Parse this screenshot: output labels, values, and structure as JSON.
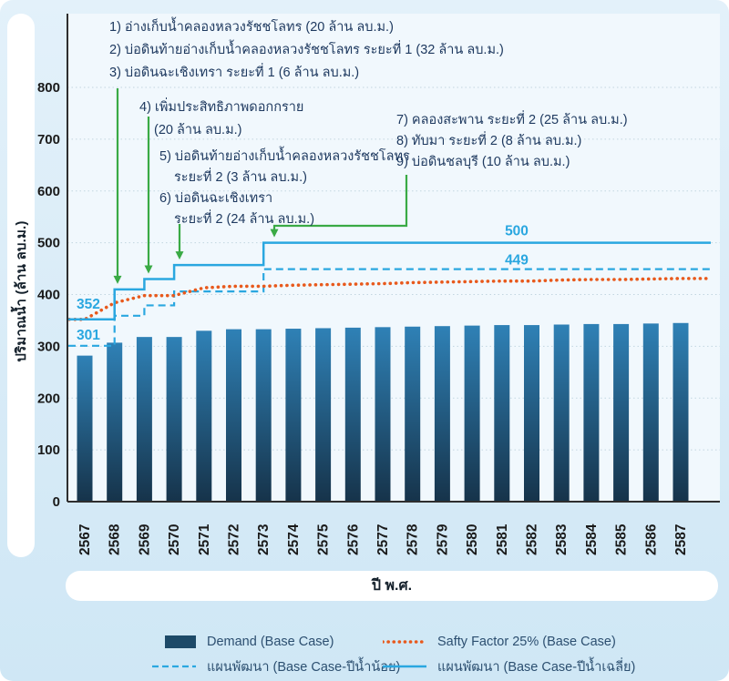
{
  "y_axis": {
    "label": "ปริมาณน้ำ (ล้าน ลบ.ม.)",
    "ticks": [
      0,
      100,
      200,
      300,
      400,
      500,
      600,
      700,
      800
    ],
    "max": 800
  },
  "x_axis": {
    "label": "ปี พ.ศ.",
    "years": [
      2567,
      2568,
      2569,
      2570,
      2571,
      2572,
      2573,
      2574,
      2575,
      2576,
      2577,
      2578,
      2579,
      2580,
      2581,
      2582,
      2583,
      2584,
      2585,
      2586,
      2587
    ]
  },
  "chart_data": {
    "type": "bar",
    "title": "",
    "xlabel": "ปี พ.ศ.",
    "ylabel": "ปริมาณน้ำ (ล้าน ลบ.ม.)",
    "ylim": [
      0,
      800
    ],
    "grid": true,
    "categories": [
      2567,
      2568,
      2569,
      2570,
      2571,
      2572,
      2573,
      2574,
      2575,
      2576,
      2577,
      2578,
      2579,
      2580,
      2581,
      2582,
      2583,
      2584,
      2585,
      2586,
      2587
    ],
    "series": [
      {
        "name": "Demand (Base Case)",
        "type": "bar",
        "values": [
          282,
          307,
          318,
          318,
          330,
          333,
          333,
          334,
          335,
          336,
          337,
          338,
          339,
          340,
          341,
          341,
          342,
          343,
          343,
          344,
          345
        ]
      },
      {
        "name": "Safty Factor 25% (Base Case)",
        "type": "dotted-line",
        "values": [
          352,
          384,
          398,
          398,
          413,
          416,
          416,
          418,
          419,
          420,
          421,
          423,
          424,
          425,
          426,
          426,
          428,
          429,
          429,
          430,
          431
        ]
      },
      {
        "name": "แผนพัฒนา (Base Case-ปีน้ำน้อย)",
        "type": "dashed-step",
        "values": [
          301,
          359,
          379,
          406,
          406,
          406,
          449,
          449,
          449,
          449,
          449,
          449,
          449,
          449,
          449,
          449,
          449,
          449,
          449,
          449,
          449
        ]
      },
      {
        "name": "แผนพัฒนา (Base Case-ปีน้ำเฉลี่ย)",
        "type": "solid-step",
        "values": [
          352,
          410,
          430,
          457,
          457,
          457,
          500,
          500,
          500,
          500,
          500,
          500,
          500,
          500,
          500,
          500,
          500,
          500,
          500,
          500,
          500
        ]
      }
    ],
    "point_labels": [
      "352",
      "301",
      "500",
      "449"
    ]
  },
  "annotations": [
    {
      "target_year": 2568,
      "target_value": 410,
      "lines": [
        {
          "t": "1) อ่างเก็บน้ำคลองหลวงรัชชโลทร (20 ล้าน ลบ.ม.)"
        },
        {
          "t": "2) บ่อดินท้ายอ่างเก็บน้ำคลองหลวงรัชชโลทร ระยะที่ 1 (32 ล้าน ลบ.ม.)"
        },
        {
          "t": "3) บ่อดินฉะเชิงเทรา ระยะที่ 1 (6 ล้าน ลบ.ม.)"
        }
      ]
    },
    {
      "target_year": 2569,
      "target_value": 430,
      "lines": [
        {
          "t": "4) เพิ่มประสิทธิภาพดอกกราย"
        },
        {
          "t": "(20 ล้าน ลบ.ม.)",
          "indent": true
        }
      ]
    },
    {
      "target_year": 2570,
      "target_value": 457,
      "lines": [
        {
          "t": "5) บ่อดินท้ายอ่างเก็บน้ำคลองหลวงรัชชโลทร"
        },
        {
          "t": "ระยะที่ 2 (3 ล้าน ลบ.ม.)",
          "indent": true
        },
        {
          "t": "6) บ่อดินฉะเชิงเทรา"
        },
        {
          "t": "ระยะที่ 2 (24 ล้าน ลบ.ม.)",
          "indent": true
        }
      ]
    },
    {
      "target_year": 2573,
      "target_value": 500,
      "lines": [
        {
          "t": "7) คลองสะพาน ระยะที่ 2 (25 ล้าน ลบ.ม.)"
        },
        {
          "t": "8) ทับมา ระยะที่ 2 (8 ล้าน ลบ.ม.)"
        },
        {
          "t": "9) บ่อดินชลบุรี (10 ล้าน ลบ.ม.)"
        }
      ]
    }
  ],
  "legend": {
    "items": [
      {
        "swatch": "bar",
        "label": "Demand (Base Case)"
      },
      {
        "swatch": "dotted",
        "label": "Safty Factor 25% (Base Case)"
      },
      {
        "swatch": "dashed",
        "label": "แผนพัฒนา (Base Case-ปีน้ำน้อย)"
      },
      {
        "swatch": "solid",
        "label": "แผนพัฒนา (Base Case-ปีน้ำเฉลี่ย)"
      }
    ]
  },
  "colors": {
    "bar_top": "#2f81b6",
    "bar_bottom": "#16334a",
    "bar_legend": "#1d4a68",
    "cyan": "#2aa7e0",
    "orange": "#e8591c",
    "green": "#3aaa45",
    "annotation_text": "#1f3a60",
    "axis_text": "#1a1a1a",
    "grid": "#c2d5e0",
    "plot_bg": "#f1f8fd"
  }
}
